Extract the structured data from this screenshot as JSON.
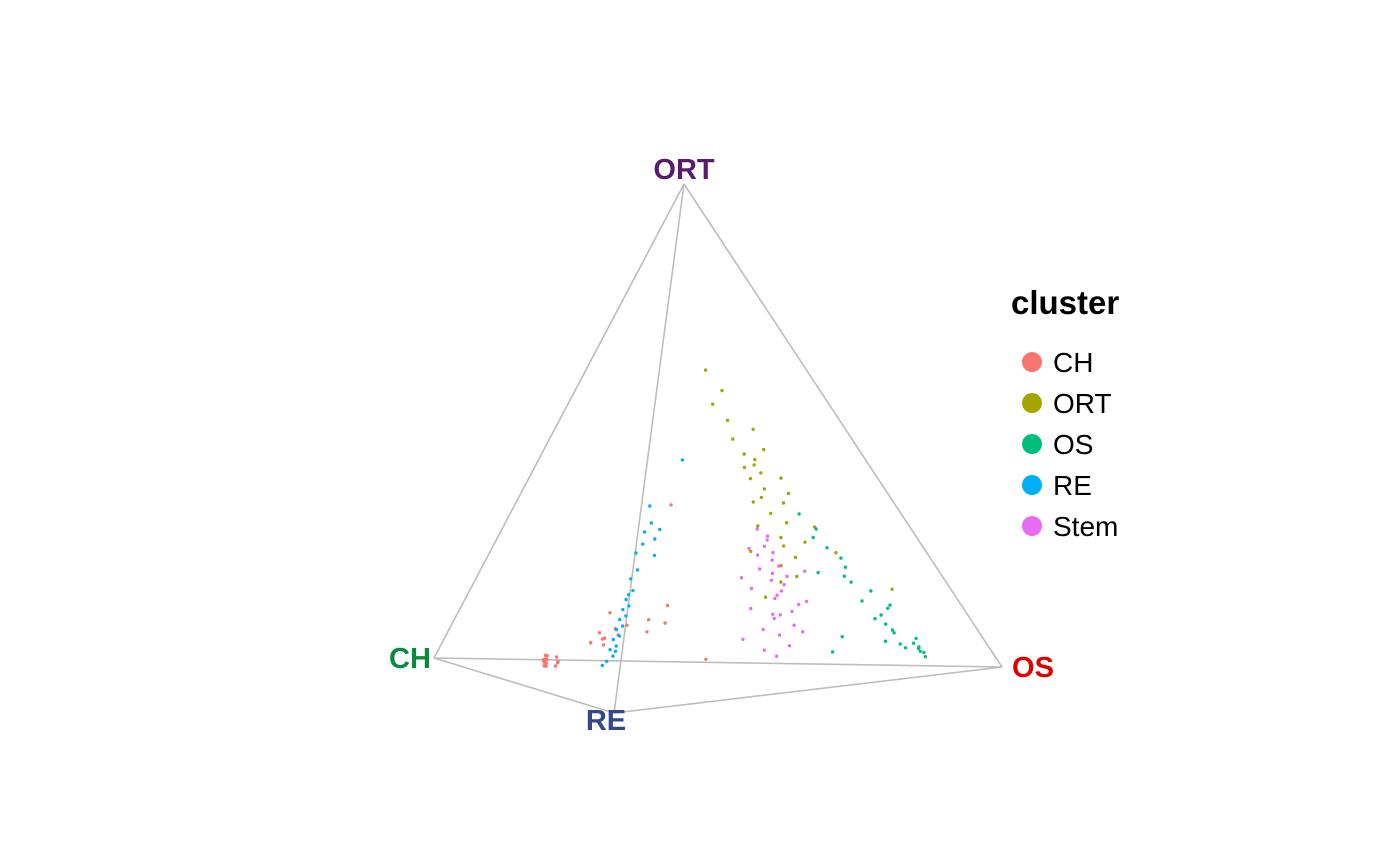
{
  "chart_data": {
    "type": "scatter",
    "title": "",
    "vertices": [
      {
        "name": "ORT",
        "color": "#5b1a6e"
      },
      {
        "name": "CH",
        "color": "#0a8a3c"
      },
      {
        "name": "RE",
        "color": "#35478c"
      },
      {
        "name": "OS",
        "color": "#e00000"
      }
    ],
    "legend": {
      "title": "cluster",
      "placement": "right",
      "items": [
        {
          "label": "CH",
          "color": "#F8766D"
        },
        {
          "label": "ORT",
          "color": "#A3A500"
        },
        {
          "label": "OS",
          "color": "#00BF7D"
        },
        {
          "label": "RE",
          "color": "#00B0F6"
        },
        {
          "label": "Stem",
          "color": "#E76BF3"
        }
      ]
    },
    "series": [
      {
        "name": "CH",
        "points": [
          [
            0.56,
            0.03,
            0.3,
            0.11
          ],
          [
            0.6,
            0.03,
            0.27,
            0.1
          ],
          [
            0.58,
            0.04,
            0.29,
            0.09
          ],
          [
            0.62,
            0.02,
            0.25,
            0.11
          ],
          [
            0.57,
            0.03,
            0.32,
            0.08
          ],
          [
            0.59,
            0.02,
            0.3,
            0.09
          ],
          [
            0.61,
            0.03,
            0.26,
            0.1
          ],
          [
            0.55,
            0.04,
            0.31,
            0.1
          ],
          [
            0.58,
            0.02,
            0.31,
            0.09
          ],
          [
            0.6,
            0.03,
            0.28,
            0.09
          ],
          [
            0.54,
            0.03,
            0.33,
            0.1
          ],
          [
            0.63,
            0.02,
            0.24,
            0.11
          ],
          [
            0.57,
            0.02,
            0.3,
            0.11
          ],
          [
            0.59,
            0.04,
            0.28,
            0.09
          ],
          [
            0.45,
            0.08,
            0.3,
            0.17
          ],
          [
            0.42,
            0.1,
            0.3,
            0.18
          ],
          [
            0.48,
            0.07,
            0.3,
            0.15
          ],
          [
            0.4,
            0.09,
            0.33,
            0.18
          ],
          [
            0.44,
            0.08,
            0.32,
            0.16
          ],
          [
            0.46,
            0.09,
            0.29,
            0.16
          ],
          [
            0.38,
            0.11,
            0.32,
            0.19
          ],
          [
            0.43,
            0.07,
            0.34,
            0.16
          ],
          [
            0.35,
            0.12,
            0.3,
            0.23
          ],
          [
            0.3,
            0.15,
            0.3,
            0.25
          ],
          [
            0.33,
            0.1,
            0.35,
            0.22
          ],
          [
            0.28,
            0.12,
            0.36,
            0.24
          ],
          [
            0.25,
            0.35,
            0.2,
            0.2
          ],
          [
            0.22,
            0.05,
            0.4,
            0.33
          ],
          [
            0.5,
            0.12,
            0.18,
            0.2
          ]
        ]
      },
      {
        "name": "ORT",
        "points": [
          [
            0.12,
            0.62,
            0.08,
            0.18
          ],
          [
            0.1,
            0.58,
            0.1,
            0.22
          ],
          [
            0.14,
            0.55,
            0.09,
            0.22
          ],
          [
            0.11,
            0.52,
            0.12,
            0.25
          ],
          [
            0.09,
            0.5,
            0.1,
            0.31
          ],
          [
            0.13,
            0.48,
            0.11,
            0.28
          ],
          [
            0.12,
            0.45,
            0.12,
            0.31
          ],
          [
            0.1,
            0.43,
            0.14,
            0.33
          ],
          [
            0.15,
            0.42,
            0.1,
            0.33
          ],
          [
            0.08,
            0.46,
            0.12,
            0.34
          ],
          [
            0.13,
            0.4,
            0.13,
            0.34
          ],
          [
            0.11,
            0.38,
            0.14,
            0.37
          ],
          [
            0.09,
            0.4,
            0.11,
            0.4
          ],
          [
            0.14,
            0.36,
            0.12,
            0.38
          ],
          [
            0.1,
            0.35,
            0.13,
            0.42
          ],
          [
            0.12,
            0.33,
            0.15,
            0.4
          ],
          [
            0.16,
            0.35,
            0.12,
            0.37
          ],
          [
            0.08,
            0.37,
            0.13,
            0.42
          ],
          [
            0.11,
            0.31,
            0.14,
            0.44
          ],
          [
            0.13,
            0.28,
            0.15,
            0.44
          ],
          [
            0.15,
            0.26,
            0.13,
            0.46
          ],
          [
            0.12,
            0.24,
            0.16,
            0.48
          ],
          [
            0.17,
            0.22,
            0.14,
            0.47
          ],
          [
            0.14,
            0.2,
            0.16,
            0.5
          ],
          [
            0.1,
            0.27,
            0.14,
            0.49
          ],
          [
            0.18,
            0.3,
            0.12,
            0.4
          ],
          [
            0.2,
            0.25,
            0.15,
            0.4
          ],
          [
            0.16,
            0.19,
            0.18,
            0.47
          ],
          [
            0.05,
            0.25,
            0.15,
            0.55
          ],
          [
            0.08,
            0.3,
            0.12,
            0.5
          ],
          [
            0.03,
            0.17,
            0.1,
            0.7
          ],
          [
            0.19,
            0.16,
            0.2,
            0.45
          ],
          [
            0.12,
            0.41,
            0.11,
            0.36
          ],
          [
            0.1,
            0.44,
            0.13,
            0.33
          ]
        ]
      },
      {
        "name": "OS",
        "points": [
          [
            0.05,
            0.05,
            0.1,
            0.8
          ],
          [
            0.04,
            0.06,
            0.12,
            0.78
          ],
          [
            0.06,
            0.04,
            0.09,
            0.81
          ],
          [
            0.03,
            0.05,
            0.13,
            0.79
          ],
          [
            0.05,
            0.03,
            0.1,
            0.82
          ],
          [
            0.04,
            0.04,
            0.11,
            0.81
          ],
          [
            0.06,
            0.05,
            0.12,
            0.77
          ],
          [
            0.05,
            0.06,
            0.14,
            0.75
          ],
          [
            0.03,
            0.07,
            0.12,
            0.78
          ],
          [
            0.07,
            0.08,
            0.11,
            0.74
          ],
          [
            0.04,
            0.09,
            0.15,
            0.72
          ],
          [
            0.06,
            0.1,
            0.13,
            0.71
          ],
          [
            0.05,
            0.12,
            0.14,
            0.69
          ],
          [
            0.03,
            0.14,
            0.13,
            0.7
          ],
          [
            0.06,
            0.15,
            0.15,
            0.64
          ],
          [
            0.04,
            0.17,
            0.14,
            0.65
          ],
          [
            0.05,
            0.19,
            0.16,
            0.6
          ],
          [
            0.07,
            0.2,
            0.14,
            0.59
          ],
          [
            0.05,
            0.22,
            0.15,
            0.58
          ],
          [
            0.04,
            0.24,
            0.16,
            0.56
          ],
          [
            0.06,
            0.26,
            0.15,
            0.53
          ],
          [
            0.08,
            0.28,
            0.14,
            0.5
          ],
          [
            0.05,
            0.3,
            0.16,
            0.49
          ],
          [
            0.07,
            0.33,
            0.15,
            0.45
          ],
          [
            0.1,
            0.08,
            0.2,
            0.62
          ],
          [
            0.12,
            0.05,
            0.22,
            0.61
          ],
          [
            0.09,
            0.21,
            0.17,
            0.53
          ],
          [
            0.11,
            0.06,
            0.09,
            0.74
          ],
          [
            0.08,
            0.11,
            0.12,
            0.69
          ],
          [
            0.06,
            0.13,
            0.1,
            0.71
          ]
        ]
      },
      {
        "name": "RE",
        "points": [
          [
            0.3,
            0.05,
            0.55,
            0.1
          ],
          [
            0.28,
            0.06,
            0.56,
            0.1
          ],
          [
            0.27,
            0.07,
            0.55,
            0.11
          ],
          [
            0.29,
            0.08,
            0.52,
            0.11
          ],
          [
            0.26,
            0.09,
            0.54,
            0.11
          ],
          [
            0.28,
            0.1,
            0.51,
            0.11
          ],
          [
            0.25,
            0.11,
            0.53,
            0.11
          ],
          [
            0.27,
            0.12,
            0.5,
            0.11
          ],
          [
            0.24,
            0.13,
            0.52,
            0.11
          ],
          [
            0.26,
            0.14,
            0.49,
            0.11
          ],
          [
            0.23,
            0.15,
            0.51,
            0.11
          ],
          [
            0.25,
            0.16,
            0.48,
            0.11
          ],
          [
            0.22,
            0.17,
            0.5,
            0.11
          ],
          [
            0.24,
            0.18,
            0.47,
            0.11
          ],
          [
            0.21,
            0.2,
            0.48,
            0.11
          ],
          [
            0.23,
            0.22,
            0.44,
            0.11
          ],
          [
            0.2,
            0.24,
            0.45,
            0.11
          ],
          [
            0.22,
            0.27,
            0.4,
            0.11
          ],
          [
            0.19,
            0.29,
            0.41,
            0.11
          ],
          [
            0.21,
            0.31,
            0.36,
            0.12
          ],
          [
            0.18,
            0.33,
            0.37,
            0.12
          ],
          [
            0.2,
            0.36,
            0.32,
            0.12
          ],
          [
            0.17,
            0.3,
            0.4,
            0.13
          ],
          [
            0.16,
            0.27,
            0.44,
            0.13
          ],
          [
            0.15,
            0.32,
            0.4,
            0.13
          ],
          [
            0.14,
            0.45,
            0.25,
            0.16
          ],
          [
            0.26,
            0.08,
            0.55,
            0.11
          ],
          [
            0.23,
            0.19,
            0.47,
            0.11
          ]
        ]
      },
      {
        "name": "Stem",
        "points": [
          [
            0.12,
            0.28,
            0.2,
            0.4
          ],
          [
            0.14,
            0.25,
            0.22,
            0.39
          ],
          [
            0.1,
            0.23,
            0.24,
            0.43
          ],
          [
            0.15,
            0.21,
            0.2,
            0.44
          ],
          [
            0.12,
            0.19,
            0.23,
            0.46
          ],
          [
            0.13,
            0.17,
            0.25,
            0.45
          ],
          [
            0.11,
            0.15,
            0.24,
            0.5
          ],
          [
            0.16,
            0.16,
            0.22,
            0.46
          ],
          [
            0.09,
            0.21,
            0.25,
            0.45
          ],
          [
            0.14,
            0.13,
            0.26,
            0.47
          ],
          [
            0.12,
            0.11,
            0.27,
            0.5
          ],
          [
            0.17,
            0.12,
            0.24,
            0.47
          ],
          [
            0.1,
            0.14,
            0.28,
            0.48
          ],
          [
            0.15,
            0.09,
            0.28,
            0.48
          ],
          [
            0.13,
            0.07,
            0.3,
            0.5
          ],
          [
            0.18,
            0.1,
            0.27,
            0.45
          ],
          [
            0.11,
            0.18,
            0.26,
            0.45
          ],
          [
            0.16,
            0.22,
            0.21,
            0.41
          ],
          [
            0.08,
            0.26,
            0.26,
            0.4
          ],
          [
            0.14,
            0.3,
            0.18,
            0.38
          ],
          [
            0.19,
            0.18,
            0.22,
            0.41
          ],
          [
            0.12,
            0.24,
            0.22,
            0.42
          ],
          [
            0.1,
            0.29,
            0.22,
            0.39
          ],
          [
            0.17,
            0.26,
            0.19,
            0.38
          ],
          [
            0.2,
            0.14,
            0.24,
            0.42
          ],
          [
            0.09,
            0.1,
            0.3,
            0.51
          ],
          [
            0.15,
            0.05,
            0.32,
            0.48
          ],
          [
            0.22,
            0.08,
            0.28,
            0.42
          ],
          [
            0.07,
            0.16,
            0.27,
            0.5
          ],
          [
            0.13,
            0.2,
            0.24,
            0.43
          ],
          [
            0.18,
            0.06,
            0.3,
            0.46
          ],
          [
            0.11,
            0.27,
            0.23,
            0.39
          ],
          [
            0.16,
            0.13,
            0.25,
            0.46
          ],
          [
            0.21,
            0.2,
            0.2,
            0.39
          ],
          [
            0.06,
            0.22,
            0.24,
            0.48
          ]
        ]
      }
    ]
  }
}
